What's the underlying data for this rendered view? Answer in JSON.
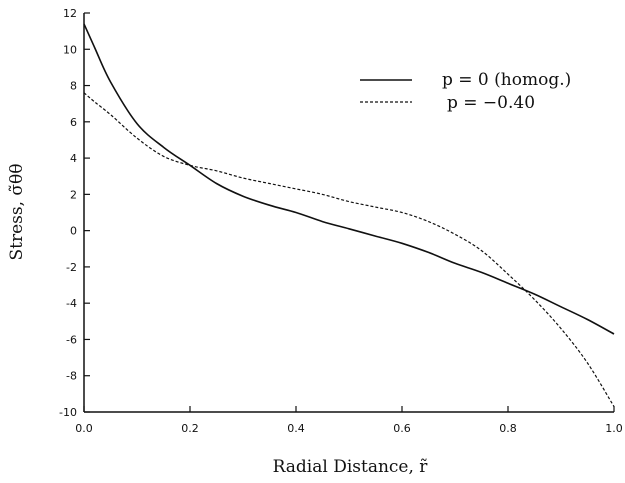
{
  "chart_data": {
    "type": "line",
    "title": "",
    "xlabel": "Radial Distance, r̃",
    "ylabel": "Stress, σ̃θθ",
    "xlim": [
      0.0,
      1.0
    ],
    "ylim": [
      -10,
      12
    ],
    "xticks": [
      "0.0",
      "0.2",
      "0.4",
      "0.6",
      "0.8",
      "1.0"
    ],
    "yticks": [
      "12",
      "10",
      "8",
      "6",
      "4",
      "2",
      "0",
      "-2",
      "-4",
      "-6",
      "-8",
      "-10"
    ],
    "grid": false,
    "legend_position": "top-right",
    "series": [
      {
        "name": "p = 0 (homog.)",
        "style": "solid",
        "color": "#111111",
        "x": [
          0.0,
          0.02,
          0.05,
          0.1,
          0.15,
          0.2,
          0.25,
          0.3,
          0.35,
          0.4,
          0.45,
          0.5,
          0.55,
          0.6,
          0.65,
          0.7,
          0.75,
          0.8,
          0.85,
          0.9,
          0.95,
          1.0
        ],
        "y": [
          11.4,
          10.1,
          8.2,
          5.9,
          4.6,
          3.6,
          2.6,
          1.9,
          1.4,
          1.0,
          0.5,
          0.1,
          -0.3,
          -0.7,
          -1.2,
          -1.8,
          -2.3,
          -2.9,
          -3.5,
          -4.2,
          -4.9,
          -5.7
        ]
      },
      {
        "name": "p = −0.40",
        "style": "dashed",
        "color": "#111111",
        "x": [
          0.0,
          0.02,
          0.05,
          0.1,
          0.15,
          0.2,
          0.25,
          0.3,
          0.35,
          0.4,
          0.45,
          0.5,
          0.55,
          0.6,
          0.65,
          0.7,
          0.75,
          0.8,
          0.85,
          0.9,
          0.95,
          1.0
        ],
        "y": [
          7.6,
          7.1,
          6.4,
          5.1,
          4.1,
          3.6,
          3.3,
          2.9,
          2.6,
          2.3,
          2.0,
          1.6,
          1.3,
          1.0,
          0.5,
          -0.2,
          -1.1,
          -2.4,
          -3.8,
          -5.4,
          -7.3,
          -9.7
        ]
      }
    ]
  }
}
